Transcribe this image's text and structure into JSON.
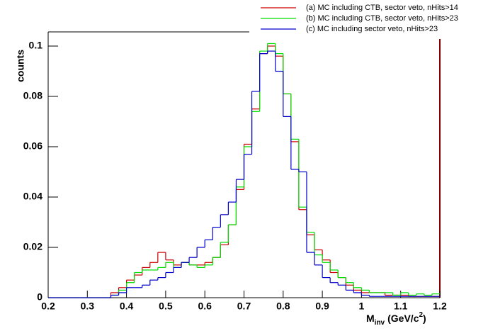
{
  "chart_data": {
    "type": "histogram",
    "y_label": "counts",
    "x_label": {
      "base": "M",
      "sub": "inv",
      "unit": "(GeV/c",
      "sup": "2",
      "close": ")"
    },
    "bins": [
      0.2,
      0.22,
      0.24,
      0.26,
      0.28,
      0.3,
      0.32,
      0.34,
      0.36,
      0.38,
      0.4,
      0.42,
      0.44,
      0.46,
      0.48,
      0.5,
      0.52,
      0.54,
      0.56,
      0.58,
      0.6,
      0.62,
      0.64,
      0.66,
      0.68,
      0.7,
      0.72,
      0.74,
      0.76,
      0.78,
      0.8,
      0.82,
      0.84,
      0.86,
      0.88,
      0.9,
      0.92,
      0.94,
      0.96,
      0.98,
      1.0,
      1.02,
      1.04,
      1.06,
      1.08,
      1.1,
      1.12,
      1.14,
      1.16,
      1.18,
      1.2
    ],
    "series": [
      {
        "name": "(a) MC including CTB, sector veto, nHits>14",
        "color": "#cc0000",
        "values": [
          0,
          0,
          0,
          0,
          0,
          0,
          0,
          0,
          0.002,
          0.004,
          0.007,
          0.009,
          0.012,
          0.014,
          0.018,
          0.015,
          0.013,
          0.014,
          0.013,
          0.013,
          0.014,
          0.016,
          0.021,
          0.029,
          0.043,
          0.061,
          0.075,
          0.097,
          0.1,
          0.096,
          0.081,
          0.062,
          0.035,
          0.025,
          0.019,
          0.015,
          0.01,
          0.008,
          0.005,
          0.003,
          0.002,
          0.002,
          0.002,
          0.001,
          0.001,
          0.001,
          0.0005,
          0.0005,
          0.0005,
          0.0005
        ]
      },
      {
        "name": "(b) MC including CTB, sector veto, nHits>23",
        "color": "#00dd00",
        "values": [
          0,
          0,
          0,
          0,
          0,
          0,
          0,
          0,
          0.001,
          0.003,
          0.006,
          0.01,
          0.011,
          0.011,
          0.012,
          0.014,
          0.012,
          0.014,
          0.013,
          0.012,
          0.013,
          0.016,
          0.022,
          0.029,
          0.044,
          0.06,
          0.074,
          0.098,
          0.101,
          0.097,
          0.081,
          0.063,
          0.036,
          0.026,
          0.017,
          0.014,
          0.011,
          0.008,
          0.006,
          0.004,
          0.003,
          0.002,
          0.002,
          0.002,
          0.001,
          0.002,
          0.001,
          0.0015,
          0.001,
          0.0015
        ]
      },
      {
        "name": "(c) MC including sector veto, nHits>23",
        "color": "#0000cc",
        "values": [
          0,
          0,
          0,
          0,
          0,
          0,
          0,
          0,
          0.001,
          0.002,
          0.004,
          0.004,
          0.005,
          0.007,
          0.008,
          0.01,
          0.012,
          0.014,
          0.016,
          0.02,
          0.023,
          0.028,
          0.033,
          0.038,
          0.047,
          0.057,
          0.082,
          0.097,
          0.098,
          0.09,
          0.072,
          0.051,
          0.05,
          0.018,
          0.013,
          0.008,
          0.006,
          0.005,
          0.003,
          0.002,
          0.001,
          0.0005,
          0.0005,
          0.0005,
          0.0005,
          0.0005,
          0.0005,
          0.0005,
          0.0005,
          0.0005
        ]
      }
    ],
    "xlim": [
      0.2,
      1.2
    ],
    "ylim": [
      0,
      0.105
    ],
    "xticks": [
      0.2,
      0.3,
      0.4,
      0.5,
      0.6,
      0.7,
      0.8,
      0.9,
      1,
      1.1,
      1.2
    ],
    "yticks": [
      0,
      0.02,
      0.04,
      0.06,
      0.08,
      0.1
    ]
  }
}
